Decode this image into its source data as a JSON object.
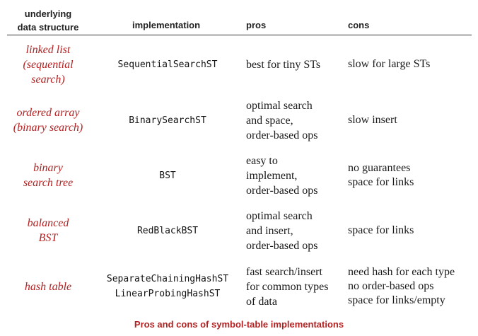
{
  "headers": {
    "data_structure": "underlying\ndata structure",
    "implementation": "implementation",
    "pros": "pros",
    "cons": "cons"
  },
  "rows": [
    {
      "data_structure": [
        "linked list",
        "(sequential",
        "search)"
      ],
      "implementation": [
        "SequentialSearchST"
      ],
      "pros": [
        "best for tiny STs"
      ],
      "cons": [
        "slow for large STs"
      ]
    },
    {
      "data_structure": [
        "ordered array",
        "(binary search)"
      ],
      "implementation": [
        "BinarySearchST"
      ],
      "pros": [
        "optimal search",
        "and space,",
        "order-based ops"
      ],
      "cons": [
        "slow insert"
      ]
    },
    {
      "data_structure": [
        "binary",
        "search tree"
      ],
      "implementation": [
        "BST"
      ],
      "pros": [
        "easy to",
        "implement,",
        "order-based ops"
      ],
      "cons": [
        "no guarantees",
        "space for links"
      ]
    },
    {
      "data_structure": [
        "balanced",
        "BST"
      ],
      "implementation": [
        "RedBlackBST"
      ],
      "pros": [
        "optimal search",
        "and insert,",
        "order-based ops"
      ],
      "cons": [
        "space for links"
      ]
    },
    {
      "data_structure": [
        "hash table"
      ],
      "implementation": [
        "SeparateChainingHashST",
        "LinearProbingHashST"
      ],
      "pros": [
        "fast search/insert",
        "for common types",
        "of data"
      ],
      "cons": [
        "need hash for each type",
        "no order-based ops",
        "space for links/empty"
      ]
    }
  ],
  "caption": "Pros and cons of symbol-table implementations",
  "colors": {
    "accent_red": "#b22222",
    "text": "#1a1a1a"
  }
}
